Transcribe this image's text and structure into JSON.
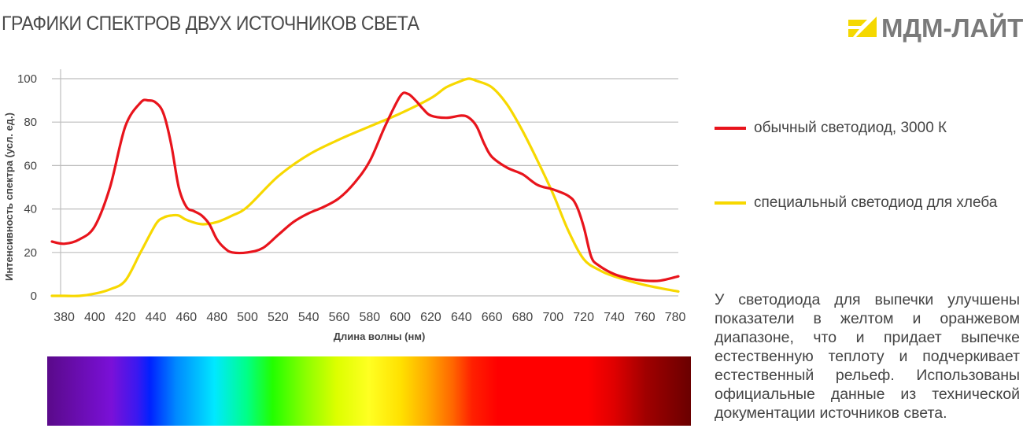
{
  "title": "ГРАФИКИ СПЕКТРОВ ДВУХ ИСТОЧНИКОВ СВЕТА",
  "logo": {
    "text": "МДМ-ЛАЙТ",
    "tm": "®",
    "color": "#f5d800"
  },
  "legend": [
    {
      "label": "обычный светодиод, 3000 К",
      "color": "#e8141c"
    },
    {
      "label": "специальный светодиод для хлеба",
      "color": "#f7d800"
    }
  ],
  "description": "У светодиода для выпечки улучшены показатели в желтом и оранжевом диапазоне, что и придает выпечке естественную теплоту и подчеркивает естественный рельеф. Использованы официальные данные из технической документации источников света.",
  "chart_data": {
    "type": "line",
    "xlabel": "Длина волны (нм)",
    "ylabel": "Интенсивность спектра (усл. ед.)",
    "xlim": [
      372,
      782
    ],
    "ylim": [
      0,
      100
    ],
    "xticks": [
      380,
      400,
      420,
      440,
      460,
      480,
      500,
      520,
      540,
      560,
      580,
      600,
      620,
      640,
      660,
      680,
      700,
      720,
      740,
      760,
      780
    ],
    "yticks": [
      0,
      20,
      40,
      60,
      80,
      100
    ],
    "grid": "horizontal",
    "series": [
      {
        "name": "обычный светодиод, 3000 К",
        "color": "#e8141c",
        "x": [
          372,
          380,
          390,
          400,
          410,
          420,
          430,
          435,
          440,
          445,
          450,
          455,
          460,
          465,
          470,
          475,
          480,
          485,
          490,
          500,
          510,
          520,
          530,
          540,
          550,
          560,
          570,
          580,
          590,
          600,
          605,
          610,
          615,
          620,
          630,
          640,
          645,
          650,
          655,
          660,
          670,
          680,
          690,
          700,
          710,
          715,
          720,
          725,
          730,
          740,
          750,
          760,
          770,
          782
        ],
        "y": [
          25,
          24,
          26,
          32,
          50,
          78,
          89,
          90,
          89,
          84,
          70,
          50,
          41,
          39,
          37,
          33,
          26,
          22,
          20,
          20,
          22,
          28,
          34,
          38,
          41,
          45,
          52,
          62,
          78,
          92,
          93,
          90,
          86,
          83,
          82,
          83,
          82,
          78,
          70,
          64,
          59,
          56,
          51,
          49,
          46,
          42,
          32,
          18,
          14,
          10,
          8,
          7,
          7,
          9
        ]
      },
      {
        "name": "специальный светодиод для хлеба",
        "color": "#f7d800",
        "x": [
          372,
          380,
          390,
          400,
          410,
          420,
          430,
          440,
          445,
          450,
          455,
          460,
          470,
          480,
          490,
          500,
          520,
          540,
          560,
          580,
          600,
          620,
          630,
          640,
          645,
          650,
          660,
          670,
          680,
          690,
          700,
          710,
          720,
          730,
          740,
          760,
          782
        ],
        "y": [
          0,
          0,
          0,
          1,
          3,
          7,
          20,
          33,
          36,
          37,
          37,
          35,
          33,
          34,
          37,
          41,
          55,
          65,
          72,
          78,
          84,
          91,
          96,
          99,
          100,
          99,
          96,
          88,
          76,
          62,
          47,
          30,
          17,
          12,
          9,
          5,
          2
        ]
      }
    ]
  }
}
